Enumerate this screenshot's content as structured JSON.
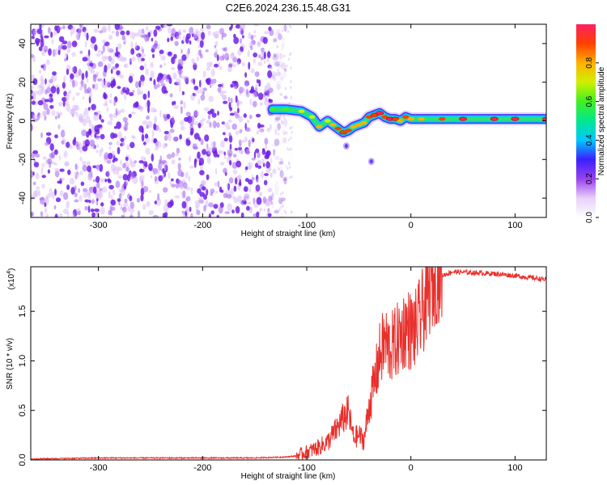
{
  "title": "C2E6.2024.236.15.48.G31",
  "colorbar": {
    "label": "Normalized spectral amplitude",
    "ticks": [
      0.0,
      0.2,
      0.4,
      0.6,
      0.8
    ],
    "tick_labels": [
      "0.0",
      "0.2",
      "0.4",
      "0.6",
      "0.8"
    ],
    "colors": [
      "#ffffff",
      "#e8d0f8",
      "#9a40f0",
      "#3a20ff",
      "#00c8ff",
      "#00e890",
      "#40f020",
      "#d0f000",
      "#ffb000",
      "#ff4000",
      "#ff2060"
    ]
  },
  "chart_data": [
    {
      "type": "heatmap",
      "name": "spectrogram",
      "xlabel": "Height of straight line (km)",
      "ylabel": "Frequency (Hz)",
      "xlim": [
        -365,
        130
      ],
      "ylim": [
        -50,
        50
      ],
      "xticks": [
        -300,
        -200,
        -100,
        0,
        100
      ],
      "xtick_labels": [
        "-300",
        "-200",
        "-100",
        "0",
        "100"
      ],
      "yticks": [
        -40,
        -20,
        0,
        20,
        40
      ],
      "ytick_labels": [
        "-40",
        "-20",
        "0",
        "20",
        "40"
      ],
      "noise_region_x": [
        -365,
        -128
      ],
      "signal_track": {
        "x": [
          -133,
          -120,
          -105,
          -95,
          -88,
          -80,
          -75,
          -70,
          -65,
          -60,
          -55,
          -50,
          -45,
          -40,
          -35,
          -30,
          -25,
          -20,
          -15,
          -10,
          -5,
          0,
          10,
          30,
          50,
          80,
          100,
          130
        ],
        "y": [
          6,
          6,
          5,
          2,
          -3,
          0,
          -2,
          -4,
          -6,
          -5,
          -3,
          -2,
          -1,
          2,
          3,
          4,
          2,
          1,
          1,
          0,
          2,
          1,
          1,
          1,
          1,
          1,
          1,
          1
        ],
        "amplitude": [
          0.5,
          0.55,
          0.6,
          0.6,
          0.7,
          0.65,
          0.75,
          0.8,
          0.85,
          0.8,
          0.75,
          0.75,
          0.7,
          0.8,
          0.85,
          0.95,
          0.8,
          0.9,
          0.85,
          0.7,
          0.8,
          0.75,
          0.7,
          0.8,
          0.9,
          0.9,
          0.95,
          0.9
        ]
      },
      "side_features": [
        {
          "x": -62,
          "y": -13,
          "amplitude": 0.35
        },
        {
          "x": -38,
          "y": -21,
          "amplitude": 0.25
        }
      ]
    },
    {
      "type": "line",
      "name": "snr",
      "xlabel": "Height of straight line (km)",
      "ylabel": "SNR (10 * v/v)",
      "scale_label": "(x10",
      "scale_exponent": "4",
      "xlim": [
        -365,
        130
      ],
      "ylim": [
        0,
        1.95
      ],
      "xticks": [
        -300,
        -200,
        -100,
        0,
        100
      ],
      "xtick_labels": [
        "-300",
        "-200",
        "-100",
        "0",
        "100"
      ],
      "yticks": [
        0,
        0.5,
        1.0,
        1.5
      ],
      "ytick_labels": [
        "0.0",
        "0.5",
        "1.0",
        "1.5"
      ],
      "series": [
        {
          "name": "SNR",
          "color": "#e8302c",
          "x": [
            -365,
            -300,
            -200,
            -150,
            -120,
            -110,
            -100,
            -90,
            -80,
            -72,
            -65,
            -60,
            -55,
            -50,
            -45,
            -40,
            -35,
            -30,
            -25,
            -20,
            -15,
            -10,
            -5,
            0,
            5,
            10,
            15,
            20,
            25,
            30,
            35,
            40,
            60,
            80,
            100,
            115,
            130
          ],
          "y": [
            0.01,
            0.02,
            0.02,
            0.02,
            0.03,
            0.04,
            0.08,
            0.12,
            0.18,
            0.3,
            0.42,
            0.48,
            0.22,
            0.25,
            0.2,
            0.55,
            0.78,
            1.05,
            1.2,
            1.12,
            1.18,
            1.25,
            1.35,
            1.3,
            1.32,
            1.45,
            1.62,
            1.75,
            1.82,
            1.86,
            1.88,
            1.9,
            1.89,
            1.88,
            1.86,
            1.84,
            1.82
          ]
        }
      ]
    }
  ]
}
